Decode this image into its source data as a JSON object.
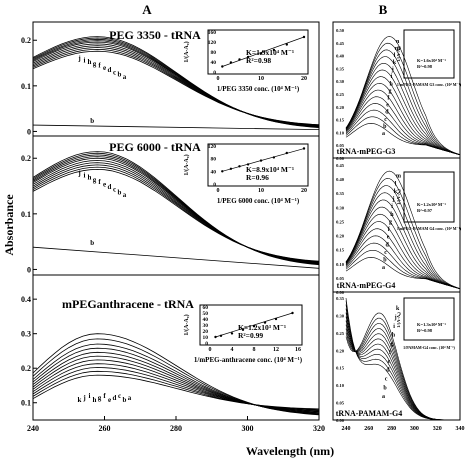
{
  "figure": {
    "panel_A_label": "A",
    "panel_B_label": "B",
    "y_axis_label": "Absorbance",
    "x_axis_label": "Wavelength (nm)",
    "x_ticks": [
      "240",
      "260",
      "280",
      "300",
      "320"
    ],
    "x_ticks_B": [
      "240",
      "260",
      "280",
      "300",
      "320",
      "340"
    ],
    "y_ticks_top": [
      "0",
      "0.1",
      "0.2"
    ],
    "y_ticks_mid": [
      "0",
      "0.1",
      "0.2"
    ],
    "y_ticks_bot": [
      "0.1",
      "0.2",
      "0.3",
      "0.4"
    ],
    "y_ticks_B_top": [
      "0.00",
      "0.05",
      "0.10",
      "0.15",
      "0.20",
      "0.25",
      "0.30",
      "0.35",
      "0.40",
      "0.45",
      "0.50"
    ],
    "y_ticks_B_mid": [
      "0.00",
      "0.05",
      "0.10",
      "0.15",
      "0.20",
      "0.25",
      "0.30",
      "0.35",
      "0.40",
      "0.45"
    ],
    "y_ticks_B_bot": [
      "0.00",
      "0.05",
      "0.10",
      "0.15",
      "0.20",
      "0.25",
      "0.30",
      "0.35"
    ]
  },
  "chart_data": [
    {
      "type": "line",
      "panel": "A-top",
      "title": "PEG 3350 - tRNA",
      "xlabel": "Wavelength (nm)",
      "ylabel": "Absorbance",
      "xlim": [
        240,
        320
      ],
      "ylim": [
        -0.01,
        0.24
      ],
      "curve_labels": [
        "j",
        "i",
        "h",
        "g",
        "f",
        "e",
        "d",
        "c",
        "b",
        "a"
      ],
      "peak_wavelength": 258,
      "peak_values": [
        0.208,
        0.205,
        0.202,
        0.199,
        0.196,
        0.192,
        0.188,
        0.184,
        0.18,
        0.176
      ],
      "baseline_curve": {
        "label": "b",
        "values_start_end": [
          0.014,
          0.004
        ]
      },
      "inset": {
        "xlabel": "1/PEG 3350 conc. (10⁴ M⁻¹)",
        "ylabel": "1/(A-A₀)",
        "x_ticks": [
          "0",
          "10",
          "20"
        ],
        "y_ticks": [
          "0",
          "40",
          "80",
          "120",
          "160"
        ],
        "annotation": [
          "K=1.9x10⁴ M⁻¹",
          "R²=0.98"
        ],
        "points": [
          [
            1,
            22
          ],
          [
            3,
            38
          ],
          [
            5,
            50
          ],
          [
            7,
            60
          ],
          [
            10,
            74
          ],
          [
            13,
            88
          ],
          [
            16,
            110
          ],
          [
            20,
            140
          ]
        ]
      }
    },
    {
      "type": "line",
      "panel": "A-mid",
      "title": "PEG 6000 - tRNA",
      "xlabel": "Wavelength (nm)",
      "ylabel": "Absorbance",
      "xlim": [
        240,
        320
      ],
      "ylim": [
        -0.01,
        0.24
      ],
      "curve_labels": [
        "j",
        "i",
        "h",
        "g",
        "f",
        "e",
        "d",
        "c",
        "b",
        "a"
      ],
      "peak_wavelength": 258,
      "peak_values": [
        0.212,
        0.209,
        0.206,
        0.203,
        0.2,
        0.196,
        0.192,
        0.188,
        0.184,
        0.18
      ],
      "baseline_curve": {
        "label": "b",
        "values_start_end": [
          0.04,
          0.002
        ]
      },
      "inset": {
        "xlabel": "1/PEG 6000 conc. (10⁴ M⁻¹)",
        "ylabel": "1/(A-A₀)",
        "x_ticks": [
          "0",
          "10",
          "20"
        ],
        "y_ticks": [
          "0",
          "40",
          "80",
          "120"
        ],
        "annotation": [
          "K=8.9x10⁴ M⁻¹",
          "R=0.96"
        ],
        "points": [
          [
            1,
            40
          ],
          [
            3,
            48
          ],
          [
            5,
            56
          ],
          [
            7,
            62
          ],
          [
            10,
            74
          ],
          [
            13,
            84
          ],
          [
            16,
            98
          ],
          [
            20,
            112
          ]
        ]
      }
    },
    {
      "type": "line",
      "panel": "A-bot",
      "title": "mPEGanthracene - tRNA",
      "xlabel": "Wavelength (nm)",
      "ylabel": "Absorbance",
      "xlim": [
        240,
        320
      ],
      "ylim": [
        0.05,
        0.47
      ],
      "curve_labels": [
        "k",
        "j",
        "i",
        "h",
        "g",
        "f",
        "e",
        "d",
        "c",
        "b",
        "a"
      ],
      "peak_wavelength": 258,
      "peak_values": [
        0.3,
        0.285,
        0.27,
        0.258,
        0.246,
        0.235,
        0.224,
        0.213,
        0.202,
        0.191,
        0.18
      ],
      "inset": {
        "xlabel": "1/mPEG-anthracene conc. (10⁴ M⁻¹)",
        "ylabel": "1/(A-A₀)",
        "x_ticks": [
          "0",
          "4",
          "8",
          "12",
          "16"
        ],
        "y_ticks": [
          "0",
          "10",
          "20",
          "30",
          "40",
          "50",
          "60"
        ],
        "annotation": [
          "K=1.2x10³ M⁻¹",
          "R²=0.99"
        ],
        "points": [
          [
            1,
            10
          ],
          [
            2,
            12
          ],
          [
            4,
            16
          ],
          [
            6,
            22
          ],
          [
            8,
            28
          ],
          [
            10,
            34
          ],
          [
            12,
            40
          ],
          [
            15,
            50
          ]
        ]
      }
    },
    {
      "type": "line",
      "panel": "B-top",
      "title": "tRNA-mPEG-G3",
      "xlim": [
        240,
        340
      ],
      "ylim": [
        0,
        0.5
      ],
      "curve_labels": [
        "n",
        "m",
        "l",
        "k",
        "j",
        "i",
        "h",
        "g",
        "f",
        "e",
        "d",
        "c",
        "b",
        "a"
      ],
      "inset": {
        "xlabel": "1/mPEG-PAMAM G3 conc. (10⁴ M⁻¹)",
        "ylabel": "1/(A-A₀)",
        "annotation": [
          "K=1.6x10⁴ M⁻¹",
          "R²=0.98"
        ]
      }
    },
    {
      "type": "line",
      "panel": "B-mid",
      "title": "tRNA-mPEG-G4",
      "xlim": [
        240,
        340
      ],
      "ylim": [
        0,
        0.45
      ],
      "curve_labels": [
        "m",
        "l",
        "k",
        "j",
        "i",
        "h",
        "g",
        "f",
        "e",
        "d",
        "c",
        "b",
        "a"
      ],
      "inset": {
        "xlabel": "1/mPEG-PAMAM G4 conc. (10⁴ M⁻¹)",
        "ylabel": "1/(A-A₀)",
        "annotation": [
          "K=1.2x10⁴ M⁻¹",
          "R²=0.97"
        ]
      }
    },
    {
      "type": "line",
      "panel": "B-bot",
      "title": "tRNA-PAMAM-G4",
      "xlim": [
        240,
        340
      ],
      "ylim": [
        0,
        0.35
      ],
      "curve_labels": [
        "k",
        "j",
        "i",
        "h",
        "g",
        "f",
        "e",
        "d",
        "c",
        "b",
        "a"
      ],
      "inset": {
        "xlabel": "1/PAMAM-G4 conc. (10⁴ M⁻¹)",
        "ylabel": "1/(A-A₀)",
        "annotation": [
          "K=1.3x10⁴ M⁻¹",
          "R²=0.98"
        ]
      }
    }
  ]
}
